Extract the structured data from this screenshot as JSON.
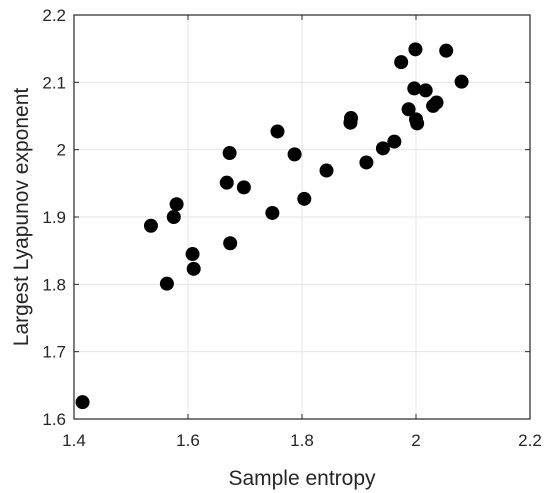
{
  "chart_data": {
    "type": "scatter",
    "xlabel": "Sample entropy",
    "ylabel": "Largest Lyapunov exponent",
    "xlim": [
      1.4,
      2.2
    ],
    "ylim": [
      1.6,
      2.2
    ],
    "xticks": [
      "1.4",
      "1.6",
      "1.8",
      "2",
      "2.2"
    ],
    "yticks": [
      "1.6",
      "1.7",
      "1.8",
      "1.9",
      "2",
      "2.1",
      "2.2"
    ],
    "grid": true,
    "marker_color": "#000000",
    "points": [
      {
        "x": 1.415,
        "y": 1.625
      },
      {
        "x": 1.535,
        "y": 1.887
      },
      {
        "x": 1.563,
        "y": 1.801
      },
      {
        "x": 1.575,
        "y": 1.9
      },
      {
        "x": 1.58,
        "y": 1.919
      },
      {
        "x": 1.608,
        "y": 1.845
      },
      {
        "x": 1.61,
        "y": 1.823
      },
      {
        "x": 1.668,
        "y": 1.951
      },
      {
        "x": 1.673,
        "y": 1.995
      },
      {
        "x": 1.674,
        "y": 1.861
      },
      {
        "x": 1.698,
        "y": 1.944
      },
      {
        "x": 1.748,
        "y": 1.906
      },
      {
        "x": 1.757,
        "y": 2.027
      },
      {
        "x": 1.787,
        "y": 1.993
      },
      {
        "x": 1.804,
        "y": 1.927
      },
      {
        "x": 1.843,
        "y": 1.969
      },
      {
        "x": 1.885,
        "y": 2.04
      },
      {
        "x": 1.886,
        "y": 2.047
      },
      {
        "x": 1.913,
        "y": 1.981
      },
      {
        "x": 1.942,
        "y": 2.002
      },
      {
        "x": 1.962,
        "y": 2.012
      },
      {
        "x": 1.974,
        "y": 2.13
      },
      {
        "x": 1.987,
        "y": 2.06
      },
      {
        "x": 1.997,
        "y": 2.091
      },
      {
        "x": 1.999,
        "y": 2.149
      },
      {
        "x": 2.0,
        "y": 2.045
      },
      {
        "x": 2.002,
        "y": 2.039
      },
      {
        "x": 2.017,
        "y": 2.088
      },
      {
        "x": 2.03,
        "y": 2.065
      },
      {
        "x": 2.036,
        "y": 2.07
      },
      {
        "x": 2.053,
        "y": 2.147
      },
      {
        "x": 2.08,
        "y": 2.101
      }
    ]
  }
}
